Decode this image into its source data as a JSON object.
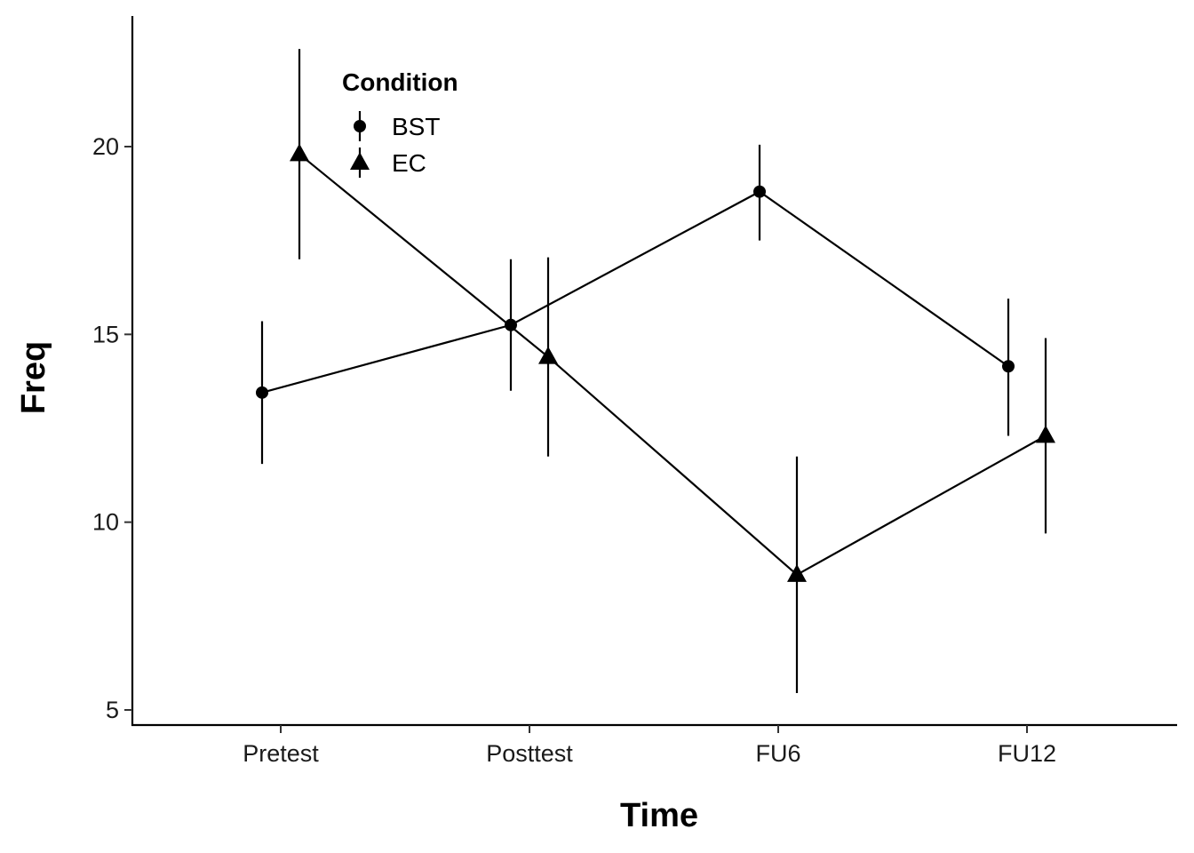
{
  "chart_data": {
    "type": "line",
    "title": "",
    "xlabel": "Time",
    "ylabel": "Freq",
    "categories": [
      "Pretest",
      "Posttest",
      "FU6",
      "FU12"
    ],
    "yticks": [
      5,
      10,
      15,
      20
    ],
    "ylim": [
      4.5,
      23.5
    ],
    "grid": false,
    "legend": {
      "title": "Condition",
      "position": "top-left"
    },
    "series": [
      {
        "name": "BST",
        "marker": "circle",
        "values": [
          13.45,
          15.25,
          18.8,
          14.15
        ],
        "error_low": [
          11.55,
          13.5,
          17.5,
          12.3
        ],
        "error_high": [
          15.35,
          17.0,
          20.05,
          15.95
        ]
      },
      {
        "name": "EC",
        "marker": "triangle",
        "values": [
          19.8,
          14.4,
          8.6,
          12.3
        ],
        "error_low": [
          17.0,
          11.75,
          5.45,
          9.7
        ],
        "error_high": [
          22.6,
          17.05,
          11.75,
          14.9
        ]
      }
    ]
  }
}
